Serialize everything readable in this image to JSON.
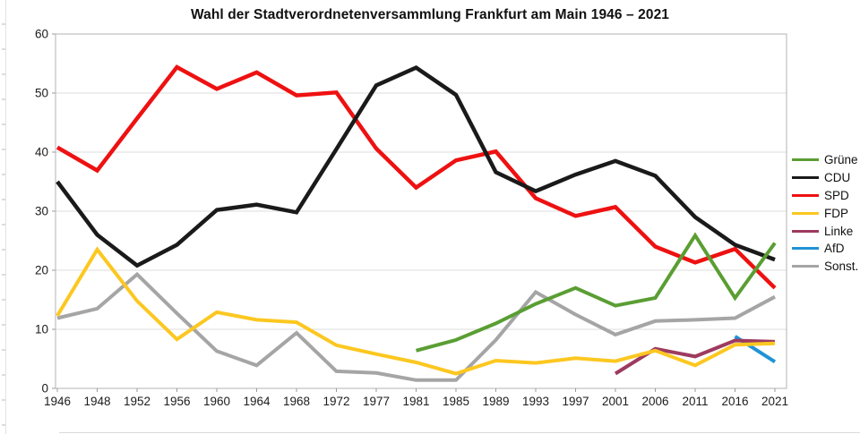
{
  "chart_data": {
    "type": "line",
    "title": "Wahl der Stadtverordnetenversammlung Frankfurt am Main 1946 – 2021",
    "xlabel": "",
    "ylabel": "",
    "ylim": [
      0,
      60
    ],
    "ytick_step": 10,
    "grid": "horizontal",
    "legend_position": "right",
    "categories": [
      "1946",
      "1948",
      "1952",
      "1956",
      "1960",
      "1964",
      "1968",
      "1972",
      "1977",
      "1981",
      "1985",
      "1989",
      "1993",
      "1997",
      "2001",
      "2006",
      "2011",
      "2016",
      "2021"
    ],
    "series": [
      {
        "id": "gruene",
        "name": "Grüne",
        "color": "#5a9e33",
        "width": 4,
        "values": [
          null,
          null,
          null,
          null,
          null,
          null,
          null,
          null,
          null,
          6.4,
          8.2,
          11.0,
          14.3,
          17.0,
          14.0,
          15.3,
          25.9,
          15.3,
          24.6
        ]
      },
      {
        "id": "cdu",
        "name": "CDU",
        "color": "#1a1a1a",
        "width": 4.5,
        "values": [
          35.0,
          26.0,
          20.8,
          24.3,
          30.2,
          31.1,
          29.8,
          40.5,
          51.3,
          54.3,
          49.7,
          36.6,
          33.4,
          36.2,
          38.5,
          36.0,
          29.0,
          24.3,
          21.8
        ]
      },
      {
        "id": "spd",
        "name": "SPD",
        "color": "#ee1111",
        "width": 4.5,
        "values": [
          40.8,
          36.9,
          45.7,
          54.4,
          50.7,
          53.5,
          49.6,
          50.1,
          40.6,
          34.0,
          38.6,
          40.1,
          32.2,
          29.2,
          30.7,
          24.0,
          21.3,
          23.6,
          17.0
        ]
      },
      {
        "id": "fdp",
        "name": "FDP",
        "color": "#fcc720",
        "width": 4,
        "values": [
          12.3,
          23.5,
          14.8,
          8.3,
          12.9,
          11.6,
          11.2,
          7.3,
          5.8,
          4.4,
          2.5,
          4.7,
          4.3,
          5.1,
          4.6,
          6.4,
          3.9,
          7.4,
          7.6
        ]
      },
      {
        "id": "linke",
        "name": "Linke",
        "color": "#9e3a5f",
        "width": 4,
        "values": [
          null,
          null,
          null,
          null,
          null,
          null,
          null,
          null,
          null,
          null,
          null,
          null,
          null,
          null,
          2.5,
          6.7,
          5.4,
          8.1,
          7.9
        ]
      },
      {
        "id": "afd",
        "name": "AfD",
        "color": "#2093d5",
        "width": 4,
        "values": [
          null,
          null,
          null,
          null,
          null,
          null,
          null,
          null,
          null,
          null,
          null,
          null,
          null,
          null,
          null,
          null,
          null,
          8.8,
          4.5
        ]
      },
      {
        "id": "sonstige",
        "name": "Sonst.",
        "color": "#a5a5a5",
        "width": 4,
        "values": [
          11.9,
          13.5,
          19.3,
          12.7,
          6.3,
          3.9,
          9.4,
          2.9,
          2.6,
          1.4,
          1.4,
          8.2,
          16.3,
          12.5,
          9.1,
          11.4,
          11.6,
          11.9,
          15.5
        ]
      }
    ],
    "colors": {
      "gridline": "#dcdcdc",
      "plot_border": "#b3b3b3",
      "tick": "#9a9a9a",
      "axis_text": "#1c1c1c",
      "title_text": "#111111"
    }
  }
}
